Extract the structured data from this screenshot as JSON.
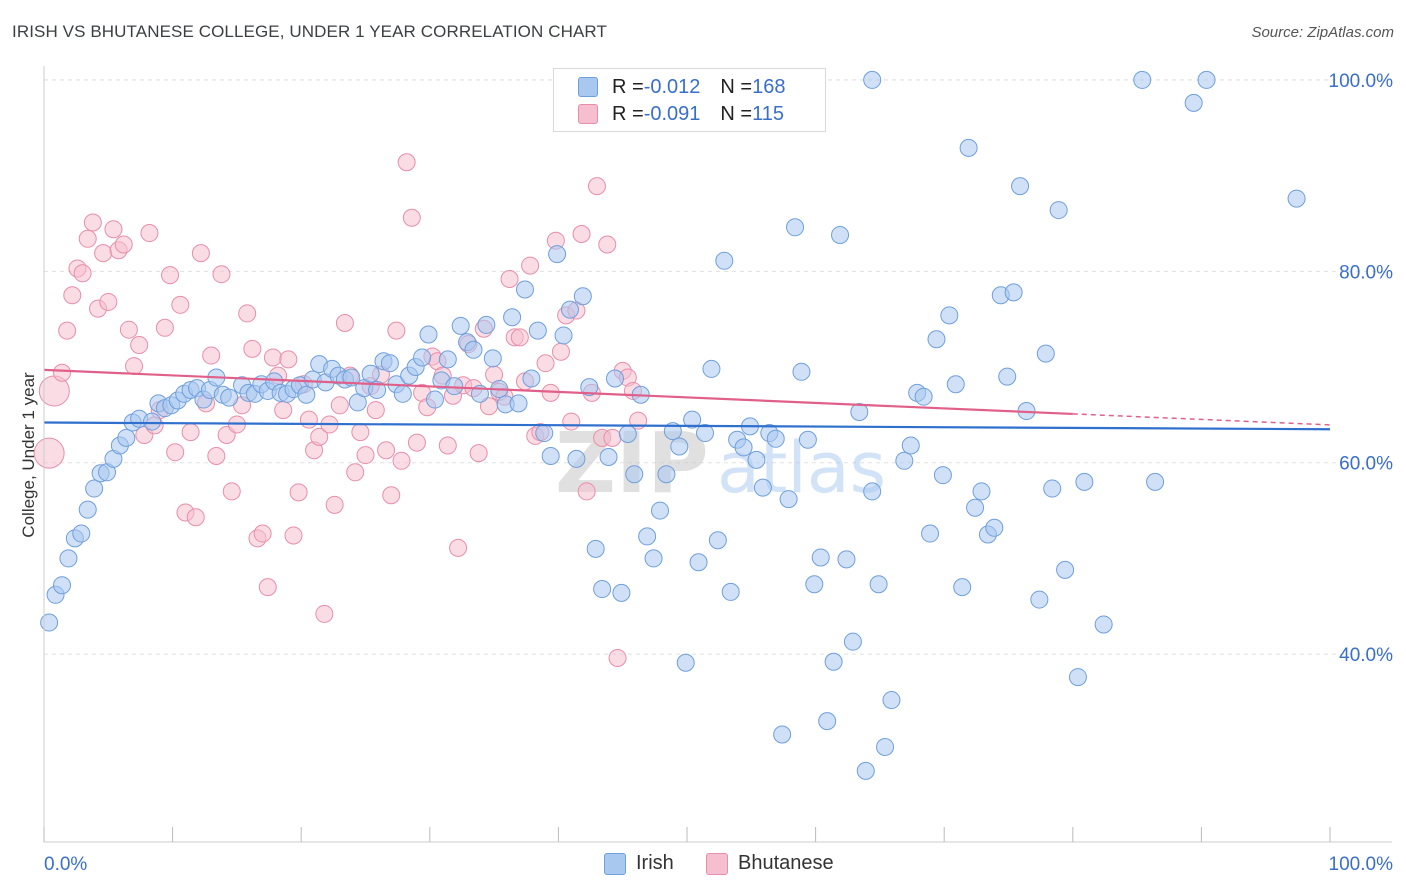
{
  "header": {
    "title": "IRISH VS BHUTANESE COLLEGE, UNDER 1 YEAR CORRELATION CHART",
    "source": "Source: ZipAtlas.com"
  },
  "legend": {
    "rows": [
      {
        "r_label": "R = ",
        "r_value": "-0.012",
        "n_label": "N = ",
        "n_value": "168"
      },
      {
        "r_label": "R = ",
        "r_value": "-0.091",
        "n_label": "N = ",
        "n_value": "115"
      }
    ]
  },
  "watermark": {
    "zip": "ZIP",
    "atlas": "atlas"
  },
  "colors": {
    "irish_fill": "#a9c8f0",
    "irish_stroke": "#6f9fdc",
    "irish_line": "#2f6fce",
    "bhutanese_fill": "#f6bfd0",
    "bhutanese_stroke": "#e88eab",
    "bhutanese_line": "#e0608a",
    "axis_label": "#3a6fc8",
    "grid": "#e0e0e0"
  },
  "chart_data": {
    "type": "scatter",
    "title": "IRISH VS BHUTANESE COLLEGE, UNDER 1 YEAR CORRELATION CHART",
    "xlabel": "",
    "ylabel": "College, Under 1 year",
    "xlim": [
      0,
      100
    ],
    "ylim": [
      20,
      103
    ],
    "x_tick_labels": [
      "0.0%",
      "100.0%"
    ],
    "y_ticks": [
      40,
      60,
      80,
      100
    ],
    "y_tick_labels": [
      "40.0%",
      "60.0%",
      "80.0%",
      "100.0%"
    ],
    "grid": true,
    "legend_position": "bottom-center",
    "series": [
      {
        "name": "Irish",
        "r": -0.012,
        "n": 168,
        "trend": {
          "x": [
            0,
            100
          ],
          "y": [
            64.2,
            63.5
          ]
        },
        "points": [
          [
            0.4,
            43.3
          ],
          [
            0.9,
            46.2
          ],
          [
            1.4,
            47.2
          ],
          [
            1.9,
            50
          ],
          [
            2.4,
            52.1
          ],
          [
            2.9,
            52.6
          ],
          [
            3.4,
            55.1
          ],
          [
            3.9,
            57.3
          ],
          [
            4.4,
            58.9
          ],
          [
            4.9,
            59
          ],
          [
            5.4,
            60.4
          ],
          [
            5.9,
            61.8
          ],
          [
            6.4,
            62.6
          ],
          [
            6.9,
            64.2
          ],
          [
            7.4,
            64.6
          ],
          [
            8.4,
            64.3
          ],
          [
            8.9,
            66.2
          ],
          [
            9.4,
            65.7
          ],
          [
            9.9,
            66
          ],
          [
            10.4,
            66.5
          ],
          [
            10.9,
            67.2
          ],
          [
            11.4,
            67.6
          ],
          [
            11.9,
            67.8
          ],
          [
            12.4,
            66.6
          ],
          [
            12.9,
            67.6
          ],
          [
            13.4,
            68.9
          ],
          [
            13.9,
            67.1
          ],
          [
            14.4,
            66.8
          ],
          [
            15.4,
            68.1
          ],
          [
            15.9,
            67.3
          ],
          [
            16.4,
            67.2
          ],
          [
            16.9,
            68.2
          ],
          [
            17.4,
            67.5
          ],
          [
            17.9,
            68.5
          ],
          [
            18.4,
            67.3
          ],
          [
            18.9,
            67.2
          ],
          [
            19.4,
            67.7
          ],
          [
            19.9,
            68.1
          ],
          [
            20.4,
            67.1
          ],
          [
            20.9,
            68.7
          ],
          [
            21.4,
            70.3
          ],
          [
            21.9,
            68.4
          ],
          [
            22.4,
            69.8
          ],
          [
            22.9,
            69.1
          ],
          [
            23.4,
            68.7
          ],
          [
            23.9,
            68.9
          ],
          [
            24.4,
            66.3
          ],
          [
            24.9,
            67.8
          ],
          [
            25.4,
            69.3
          ],
          [
            25.9,
            67.6
          ],
          [
            26.4,
            70.6
          ],
          [
            26.9,
            70.4
          ],
          [
            27.4,
            68.2
          ],
          [
            27.9,
            67.2
          ],
          [
            28.4,
            69.1
          ],
          [
            28.9,
            70
          ],
          [
            29.4,
            71
          ],
          [
            29.9,
            73.4
          ],
          [
            30.4,
            66.6
          ],
          [
            30.9,
            68.6
          ],
          [
            31.4,
            70.8
          ],
          [
            31.9,
            68
          ],
          [
            32.4,
            74.3
          ],
          [
            32.9,
            72.6
          ],
          [
            33.4,
            71.8
          ],
          [
            33.9,
            67.2
          ],
          [
            34.4,
            74.4
          ],
          [
            34.9,
            70.9
          ],
          [
            35.4,
            67.7
          ],
          [
            35.9,
            66.1
          ],
          [
            36.4,
            75.2
          ],
          [
            36.9,
            66.2
          ],
          [
            37.4,
            78.1
          ],
          [
            37.9,
            68.8
          ],
          [
            38.4,
            73.8
          ],
          [
            38.9,
            63.1
          ],
          [
            39.4,
            60.7
          ],
          [
            39.9,
            81.8
          ],
          [
            40.4,
            73.3
          ],
          [
            40.9,
            76
          ],
          [
            41.4,
            60.4
          ],
          [
            41.9,
            77.4
          ],
          [
            42.4,
            67.9
          ],
          [
            42.9,
            51
          ],
          [
            43.4,
            46.8
          ],
          [
            43.9,
            60.6
          ],
          [
            44.4,
            68.8
          ],
          [
            44.9,
            46.4
          ],
          [
            45.4,
            63
          ],
          [
            45.9,
            58.8
          ],
          [
            46.4,
            67.1
          ],
          [
            46.9,
            52.3
          ],
          [
            47.4,
            50
          ],
          [
            47.9,
            55
          ],
          [
            48.4,
            58.8
          ],
          [
            48.9,
            63.3
          ],
          [
            49.4,
            61.7
          ],
          [
            49.9,
            39.1
          ],
          [
            50.4,
            64.5
          ],
          [
            50.9,
            49.6
          ],
          [
            51.4,
            63.1
          ],
          [
            51.9,
            69.8
          ],
          [
            52.4,
            51.9
          ],
          [
            52.9,
            81.1
          ],
          [
            53.4,
            46.5
          ],
          [
            53.9,
            62.4
          ],
          [
            54.4,
            61.6
          ],
          [
            54.9,
            63.8
          ],
          [
            55.4,
            60.3
          ],
          [
            55.9,
            57.4
          ],
          [
            56.4,
            63.1
          ],
          [
            56.9,
            62.5
          ],
          [
            57.4,
            31.6
          ],
          [
            57.9,
            56.2
          ],
          [
            58.4,
            84.6
          ],
          [
            58.9,
            69.5
          ],
          [
            59.4,
            62.4
          ],
          [
            59.9,
            47.3
          ],
          [
            60.4,
            50.1
          ],
          [
            60.9,
            33
          ],
          [
            61.4,
            39.2
          ],
          [
            61.9,
            83.8
          ],
          [
            62.4,
            49.9
          ],
          [
            62.9,
            41.3
          ],
          [
            63.4,
            65.3
          ],
          [
            63.9,
            27.8
          ],
          [
            64.4,
            57
          ],
          [
            64.9,
            47.3
          ],
          [
            65.4,
            30.3
          ],
          [
            65.9,
            35.2
          ],
          [
            66.9,
            60.2
          ],
          [
            67.4,
            61.8
          ],
          [
            67.9,
            67.3
          ],
          [
            68.4,
            66.9
          ],
          [
            68.9,
            52.6
          ],
          [
            69.4,
            72.9
          ],
          [
            69.9,
            58.7
          ],
          [
            70.4,
            75.4
          ],
          [
            70.9,
            68.2
          ],
          [
            71.4,
            47
          ],
          [
            71.9,
            92.9
          ],
          [
            72.4,
            55.3
          ],
          [
            72.9,
            57
          ],
          [
            73.4,
            52.5
          ],
          [
            73.9,
            53.2
          ],
          [
            74.4,
            77.5
          ],
          [
            74.9,
            69
          ],
          [
            75.4,
            77.8
          ],
          [
            75.9,
            88.9
          ],
          [
            76.4,
            65.4
          ],
          [
            77.4,
            45.7
          ],
          [
            77.9,
            71.4
          ],
          [
            78.4,
            57.3
          ],
          [
            78.9,
            86.4
          ],
          [
            79.4,
            48.8
          ],
          [
            80.4,
            37.6
          ],
          [
            80.9,
            58
          ],
          [
            82.4,
            43.1
          ],
          [
            86.4,
            58
          ],
          [
            89.4,
            97.6
          ],
          [
            97.4,
            87.6
          ],
          [
            64.4,
            100
          ],
          [
            85.4,
            100
          ],
          [
            90.4,
            100
          ]
        ]
      },
      {
        "name": "Bhutanese",
        "r": -0.091,
        "n": 115,
        "trend": {
          "x": [
            0,
            80
          ],
          "y": [
            69.7,
            65.1
          ]
        },
        "points": [
          [
            0.4,
            61
          ],
          [
            0.8,
            67.5
          ],
          [
            1.4,
            69.4
          ],
          [
            1.8,
            73.8
          ],
          [
            2.2,
            77.5
          ],
          [
            2.6,
            80.3
          ],
          [
            3,
            79.8
          ],
          [
            3.4,
            83.4
          ],
          [
            3.8,
            85.1
          ],
          [
            4.2,
            76.1
          ],
          [
            4.6,
            81.9
          ],
          [
            5,
            76.8
          ],
          [
            5.4,
            84.4
          ],
          [
            5.8,
            82.2
          ],
          [
            6.2,
            82.8
          ],
          [
            6.6,
            73.9
          ],
          [
            7,
            70.1
          ],
          [
            7.4,
            72.3
          ],
          [
            7.8,
            62.9
          ],
          [
            8.2,
            84
          ],
          [
            8.6,
            63.9
          ],
          [
            9,
            65.5
          ],
          [
            9.4,
            74.1
          ],
          [
            9.8,
            79.6
          ],
          [
            10.2,
            61.1
          ],
          [
            10.6,
            76.5
          ],
          [
            11,
            54.8
          ],
          [
            11.4,
            63.2
          ],
          [
            11.8,
            54.3
          ],
          [
            12.2,
            81.9
          ],
          [
            12.6,
            66.2
          ],
          [
            13,
            71.2
          ],
          [
            13.4,
            60.7
          ],
          [
            13.8,
            79.7
          ],
          [
            14.2,
            62.9
          ],
          [
            14.6,
            57
          ],
          [
            15,
            64
          ],
          [
            15.4,
            66
          ],
          [
            15.8,
            75.6
          ],
          [
            16.2,
            71.9
          ],
          [
            16.6,
            52.1
          ],
          [
            17,
            52.6
          ],
          [
            17.4,
            47
          ],
          [
            17.8,
            71
          ],
          [
            18.2,
            69.1
          ],
          [
            18.6,
            65.5
          ],
          [
            19,
            70.8
          ],
          [
            19.4,
            52.4
          ],
          [
            19.8,
            56.9
          ],
          [
            20.2,
            68.2
          ],
          [
            20.6,
            64.5
          ],
          [
            21,
            61.3
          ],
          [
            21.4,
            62.7
          ],
          [
            21.8,
            44.2
          ],
          [
            22.2,
            64
          ],
          [
            22.6,
            55.6
          ],
          [
            23,
            66
          ],
          [
            23.4,
            74.6
          ],
          [
            23.8,
            69.1
          ],
          [
            24.2,
            59
          ],
          [
            24.6,
            63.2
          ],
          [
            25,
            60.8
          ],
          [
            25.4,
            68
          ],
          [
            25.8,
            65.5
          ],
          [
            26.2,
            69.2
          ],
          [
            26.6,
            61.3
          ],
          [
            27,
            56.6
          ],
          [
            27.4,
            73.8
          ],
          [
            27.8,
            60.2
          ],
          [
            28.2,
            91.4
          ],
          [
            28.6,
            85.6
          ],
          [
            29,
            62.1
          ],
          [
            29.4,
            67.3
          ],
          [
            29.8,
            65.8
          ],
          [
            30.2,
            71.1
          ],
          [
            30.6,
            70.6
          ],
          [
            31,
            69.1
          ],
          [
            31.4,
            61.8
          ],
          [
            31.8,
            67
          ],
          [
            32.2,
            51.1
          ],
          [
            32.6,
            68.1
          ],
          [
            33,
            72.4
          ],
          [
            33.4,
            67.8
          ],
          [
            33.8,
            61
          ],
          [
            34.2,
            74
          ],
          [
            34.6,
            65.9
          ],
          [
            35,
            69.2
          ],
          [
            35.4,
            67.4
          ],
          [
            35.8,
            66.9
          ],
          [
            36.2,
            79.2
          ],
          [
            36.6,
            73.1
          ],
          [
            37,
            73.1
          ],
          [
            37.4,
            68.5
          ],
          [
            37.8,
            80.6
          ],
          [
            38.2,
            62.8
          ],
          [
            38.6,
            63.2
          ],
          [
            39,
            70.4
          ],
          [
            39.4,
            67.3
          ],
          [
            39.8,
            83.2
          ],
          [
            40.2,
            71.6
          ],
          [
            40.6,
            75.4
          ],
          [
            41,
            64.3
          ],
          [
            41.4,
            75.9
          ],
          [
            41.8,
            83.9
          ],
          [
            42.2,
            57
          ],
          [
            42.6,
            67.3
          ],
          [
            43,
            88.9
          ],
          [
            43.4,
            62.6
          ],
          [
            43.8,
            82.8
          ],
          [
            44.2,
            62.6
          ],
          [
            44.6,
            39.6
          ],
          [
            45,
            69.6
          ],
          [
            45.4,
            68.9
          ],
          [
            45.8,
            67.5
          ],
          [
            46.2,
            64.4
          ]
        ]
      }
    ]
  }
}
